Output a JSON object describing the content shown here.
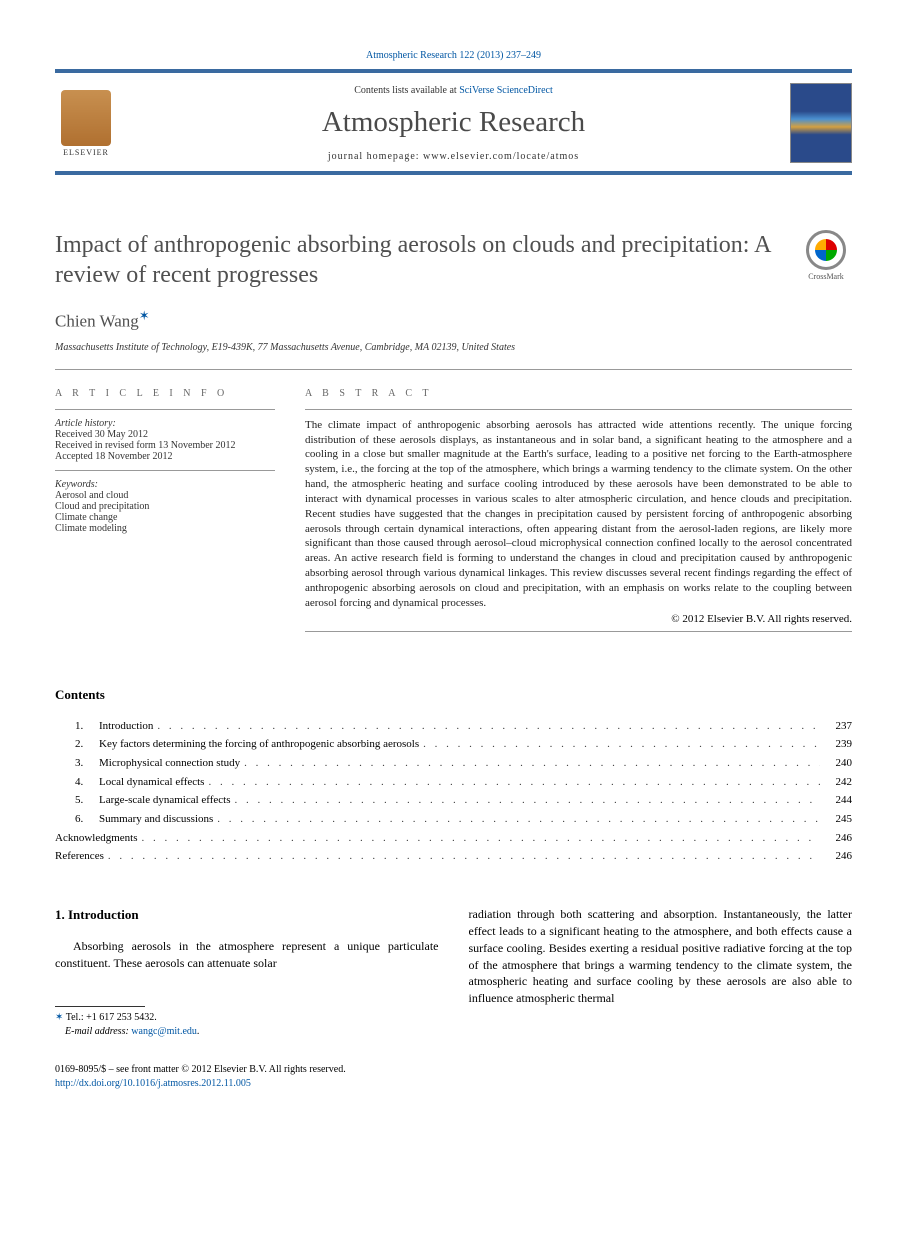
{
  "header": {
    "citation": "Atmospheric Research 122 (2013) 237–249",
    "contents_prefix": "Contents lists available at ",
    "contents_link": "SciVerse ScienceDirect",
    "journal": "Atmospheric Research",
    "homepage_prefix": "journal homepage: ",
    "homepage": "www.elsevier.com/locate/atmos",
    "publisher_logo_label": "ELSEVIER"
  },
  "crossmark": {
    "label": "CrossMark"
  },
  "article": {
    "title": "Impact of anthropogenic absorbing aerosols on clouds and precipitation: A review of recent progresses",
    "author": "Chien Wang",
    "affiliation": "Massachusetts Institute of Technology, E19-439K, 77 Massachusetts Avenue, Cambridge, MA 02139, United States"
  },
  "info": {
    "heading": "A R T I C L E   I N F O",
    "history_label": "Article history:",
    "history": [
      "Received 30 May 2012",
      "Received in revised form 13 November 2012",
      "Accepted 18 November 2012"
    ],
    "keywords_label": "Keywords:",
    "keywords": [
      "Aerosol and cloud",
      "Cloud and precipitation",
      "Climate change",
      "Climate modeling"
    ]
  },
  "abstract": {
    "heading": "A B S T R A C T",
    "text": "The climate impact of anthropogenic absorbing aerosols has attracted wide attentions recently. The unique forcing distribution of these aerosols displays, as instantaneous and in solar band, a significant heating to the atmosphere and a cooling in a close but smaller magnitude at the Earth's surface, leading to a positive net forcing to the Earth-atmosphere system, i.e., the forcing at the top of the atmosphere, which brings a warming tendency to the climate system. On the other hand, the atmospheric heating and surface cooling introduced by these aerosols have been demonstrated to be able to interact with dynamical processes in various scales to alter atmospheric circulation, and hence clouds and precipitation. Recent studies have suggested that the changes in precipitation caused by persistent forcing of anthropogenic absorbing aerosols through certain dynamical interactions, often appearing distant from the aerosol-laden regions, are likely more significant than those caused through aerosol–cloud microphysical connection confined locally to the aerosol concentrated areas. An active research field is forming to understand the changes in cloud and precipitation caused by anthropogenic absorbing aerosol through various dynamical linkages. This review discusses several recent findings regarding the effect of anthropogenic absorbing aerosols on cloud and precipitation, with an emphasis on works relate to the coupling between aerosol forcing and dynamical processes.",
    "copyright": "© 2012 Elsevier B.V. All rights reserved."
  },
  "contents": {
    "heading": "Contents",
    "items": [
      {
        "num": "1.",
        "label": "Introduction",
        "page": "237"
      },
      {
        "num": "2.",
        "label": "Key factors determining the forcing of anthropogenic absorbing aerosols",
        "page": "239"
      },
      {
        "num": "3.",
        "label": "Microphysical connection study",
        "page": "240"
      },
      {
        "num": "4.",
        "label": "Local dynamical effects",
        "page": "242"
      },
      {
        "num": "5.",
        "label": "Large-scale dynamical effects",
        "page": "244"
      },
      {
        "num": "6.",
        "label": "Summary and discussions",
        "page": "245"
      },
      {
        "num": "",
        "label": "Acknowledgments",
        "page": "246"
      },
      {
        "num": "",
        "label": "References",
        "page": "246"
      }
    ]
  },
  "body": {
    "section_heading": "1. Introduction",
    "col1": "Absorbing aerosols in the atmosphere represent a unique particulate constituent. These aerosols can attenuate solar",
    "col2": "radiation through both scattering and absorption. Instantaneously, the latter effect leads to a significant heating to the atmosphere, and both effects cause a surface cooling. Besides exerting a residual positive radiative forcing at the top of the atmosphere that brings a warming tendency to the climate system, the atmospheric heating and surface cooling by these aerosols are also able to influence atmospheric thermal"
  },
  "footnote": {
    "tel_label": "Tel.: ",
    "tel": "+1 617 253 5432.",
    "email_label": "E-mail address: ",
    "email": "wangc@mit.edu",
    "email_suffix": "."
  },
  "footer": {
    "line1": "0169-8095/$ – see front matter © 2012 Elsevier B.V. All rights reserved.",
    "doi": "http://dx.doi.org/10.1016/j.atmosres.2012.11.005"
  },
  "colors": {
    "link": "#0056a3",
    "rule": "#3a6aa0",
    "text_gray": "#505050"
  }
}
